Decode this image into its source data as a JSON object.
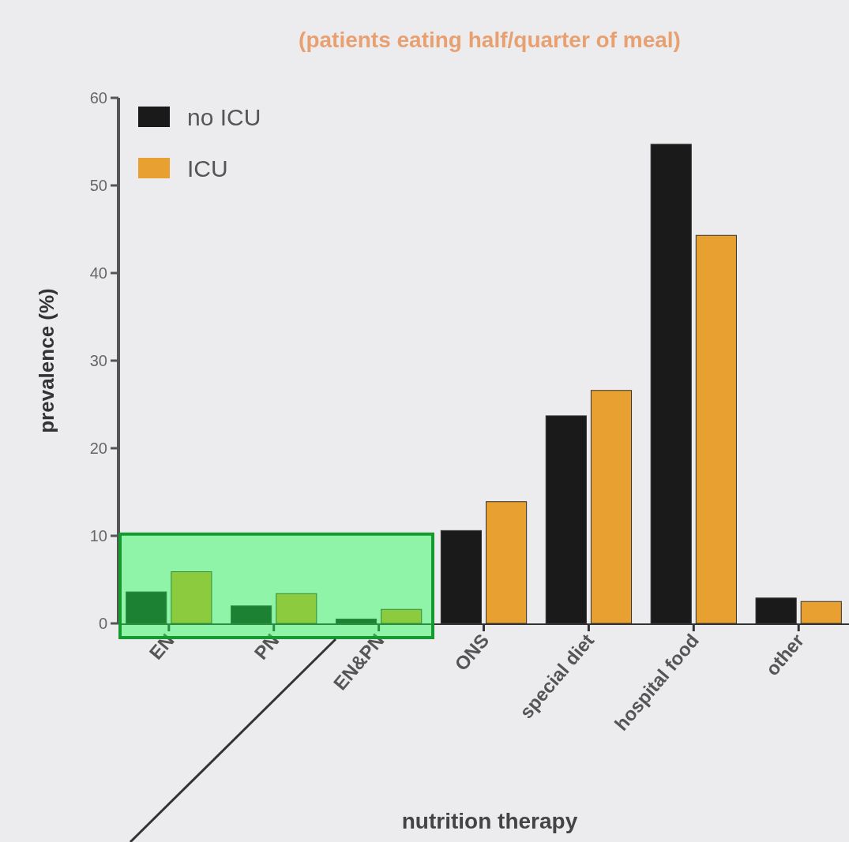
{
  "chart_data": {
    "type": "bar",
    "title": "(patients eating half/quarter of meal)",
    "xlabel": "nutrition therapy",
    "ylabel": "prevalence (%)",
    "categories": [
      "EN",
      "PN",
      "EN&PN",
      "ONS",
      "special diet",
      "hospital food",
      "other"
    ],
    "series": [
      {
        "name": "no ICU",
        "color": "#1a1a1a",
        "values": [
          3.6,
          2.0,
          0.5,
          10.6,
          23.7,
          54.7,
          2.9
        ]
      },
      {
        "name": "ICU",
        "color": "#e8a030",
        "values": [
          5.9,
          3.4,
          1.6,
          13.9,
          26.6,
          44.3,
          2.5
        ]
      }
    ],
    "ylim": [
      0,
      60
    ],
    "yticks": [
      0,
      10,
      20,
      30,
      40,
      50,
      60
    ],
    "grid": false,
    "legend": "top left"
  }
}
